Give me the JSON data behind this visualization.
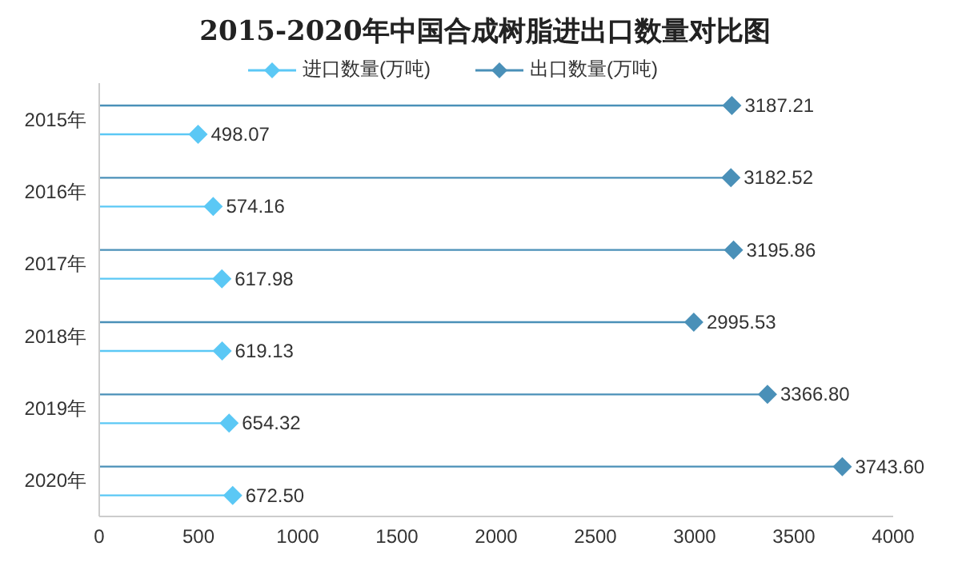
{
  "chart_data": {
    "type": "lollipop",
    "orientation": "horizontal",
    "title": "2015-2020年中国合成树脂进出口数量对比图",
    "categories": [
      "2015年",
      "2016年",
      "2017年",
      "2018年",
      "2019年",
      "2020年"
    ],
    "series": [
      {
        "name": "进口数量(万吨)",
        "color": "#5bc8f5",
        "values": [
          498.07,
          574.16,
          617.98,
          619.13,
          654.32,
          672.5
        ],
        "value_labels": [
          "498.07",
          "574.16",
          "617.98",
          "619.13",
          "654.32",
          "672.50"
        ]
      },
      {
        "name": "出口数量(万吨)",
        "color": "#4a90b8",
        "values": [
          3187.21,
          3182.52,
          3195.86,
          2995.53,
          3366.8,
          3743.6
        ],
        "value_labels": [
          "3187.21",
          "3182.52",
          "3195.86",
          "2995.53",
          "3366.80",
          "3743.60"
        ]
      }
    ],
    "xlim": [
      0,
      4000
    ],
    "xticks": [
      0,
      500,
      1000,
      1500,
      2000,
      2500,
      3000,
      3500,
      4000
    ],
    "grid": false,
    "legend": "top",
    "marker": "diamond"
  }
}
